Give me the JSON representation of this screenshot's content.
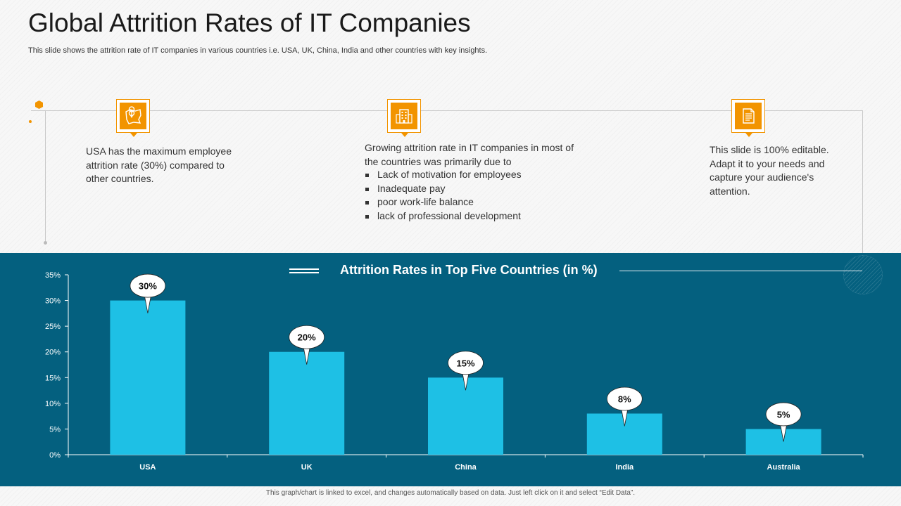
{
  "header": {
    "title": "Global Attrition Rates of IT Companies",
    "subtitle": "This slide shows the attrition rate of IT companies in various countries i.e. USA, UK, China, India and other countries with key insights."
  },
  "insights": {
    "usa_text": "USA has the maximum employee attrition rate (30%) compared to other countries.",
    "growth_intro": "Growing attrition rate in IT companies in most of the countries was primarily due to",
    "growth_bullets": [
      "Lack of motivation for employees",
      "Inadequate pay",
      "poor work-life balance",
      "lack of professional development"
    ],
    "editable_text": "This slide is 100% editable. Adapt it to your needs and capture your audience's attention."
  },
  "icons": {
    "first": "map-pin-icon",
    "second": "office-building-icon",
    "third": "document-icon"
  },
  "colors": {
    "accent": "#f29400",
    "panel": "#04607f",
    "bar": "#1ec0e5"
  },
  "chart_data": {
    "type": "bar",
    "title": "Attrition Rates in Top Five Countries (in %)",
    "categories": [
      "USA",
      "UK",
      "China",
      "India",
      "Australia"
    ],
    "values": [
      30,
      20,
      15,
      8,
      5
    ],
    "data_labels": [
      "30%",
      "20%",
      "15%",
      "8%",
      "5%"
    ],
    "ylim": [
      0,
      35
    ],
    "yticks": [
      0,
      5,
      10,
      15,
      20,
      25,
      30,
      35
    ],
    "ytick_labels": [
      "0%",
      "5%",
      "10%",
      "15%",
      "20%",
      "25%",
      "30%",
      "35%"
    ],
    "xlabel": "",
    "ylabel": "",
    "grid": false
  },
  "footer": {
    "note": "This graph/chart is linked to excel, and changes automatically based on data. Just left click on it and select “Edit Data”."
  }
}
